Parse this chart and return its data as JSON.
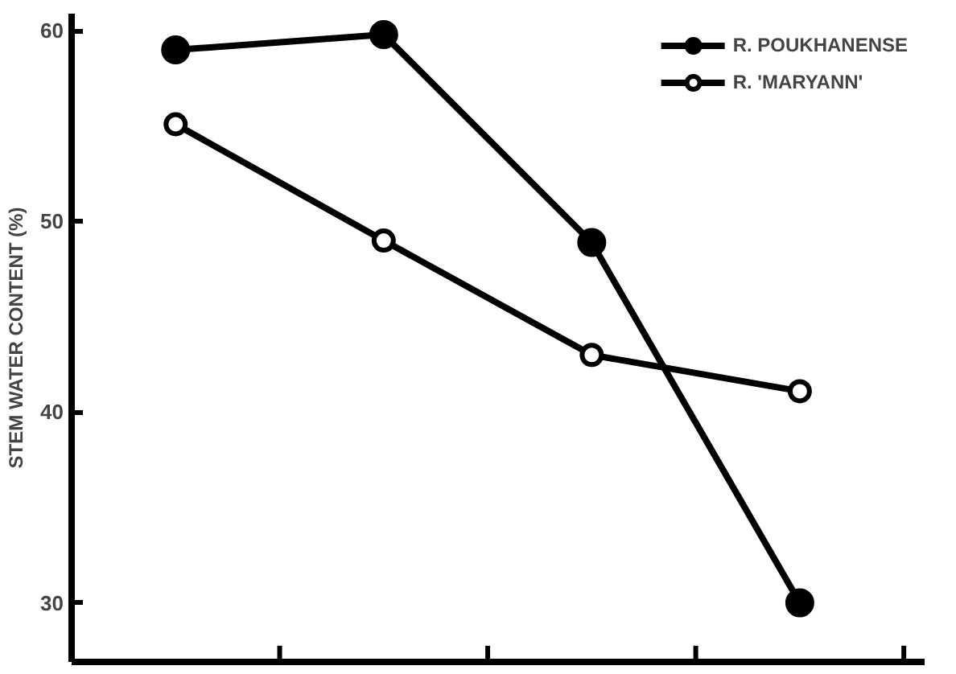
{
  "chart_data": {
    "type": "line",
    "ylabel": "STEM WATER CONTENT (%)",
    "categories": [
      null,
      null,
      null,
      null
    ],
    "ylim": [
      26.9,
      60.9
    ],
    "yticks": [
      30,
      40,
      50,
      60
    ],
    "tick_labels": "y",
    "grid": false,
    "legend": "top right",
    "marker": "circle",
    "line_style": "solid",
    "series": [
      {
        "name": "R. POUKHANENSE",
        "color": "#000000",
        "values": [
          59.0,
          59.8,
          48.9,
          30.0
        ]
      },
      {
        "name": "R. 'MARYANN'",
        "color": "#000000",
        "values": [
          55.1,
          49.0,
          43.0,
          41.1
        ]
      }
    ]
  }
}
